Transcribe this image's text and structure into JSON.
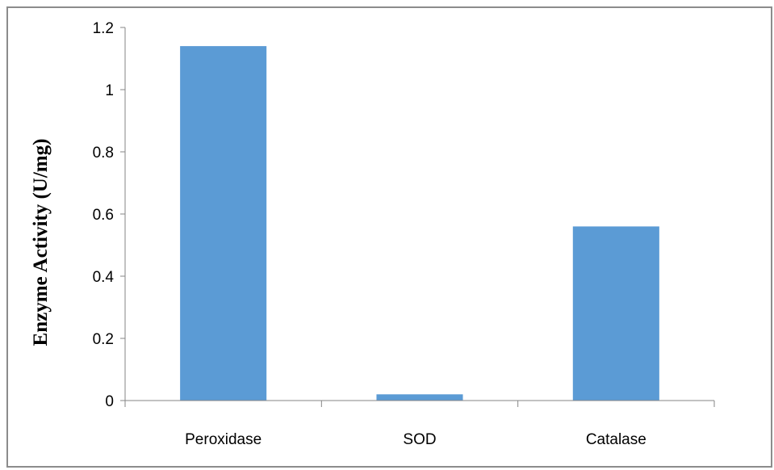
{
  "chart_data": {
    "type": "bar",
    "categories": [
      "Peroxidase",
      "SOD",
      "Catalase"
    ],
    "values": [
      1.14,
      0.02,
      0.56
    ],
    "title": "",
    "xlabel": "",
    "ylabel": "Enzyme Activity (U/mg)",
    "ylim": [
      0,
      1.2
    ],
    "yticks": [
      "0",
      "0.2",
      "0.4",
      "0.6",
      "0.8",
      "1",
      "1.2"
    ],
    "grid": false,
    "legend": "none",
    "bar_color": "#5b9bd5",
    "axis_color": "#868686"
  }
}
